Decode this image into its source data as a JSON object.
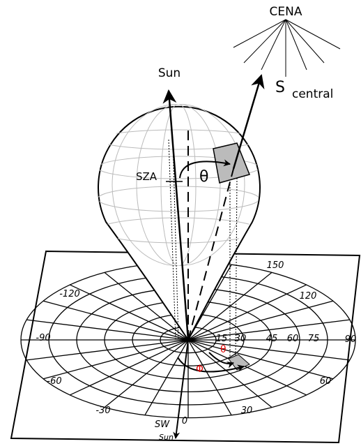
{
  "top_labels": {
    "cena": "CENA",
    "s_central": "S",
    "s_central_sub": "central",
    "sun": "Sun",
    "sza": "SZA",
    "theta": "θ"
  },
  "polar_grid": {
    "azimuth_labels": [
      "-120",
      "150",
      "120",
      "-90",
      "90",
      "-60",
      "60",
      "-30",
      "30",
      "0"
    ],
    "radial_labels": [
      "15",
      "30",
      "45",
      "60",
      "75"
    ]
  },
  "plane_labels": {
    "theta": "θ",
    "phi": "Φ",
    "sw": "SW",
    "sun": "Sun"
  }
}
